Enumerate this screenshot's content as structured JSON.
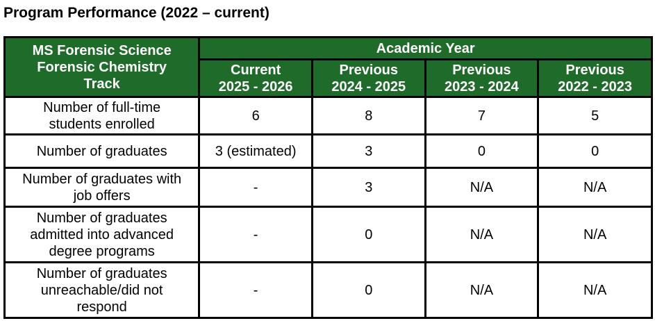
{
  "title": "Program Performance (2022 – current)",
  "colors": {
    "header_bg": "#1e6b2a",
    "header_text": "#ffffff",
    "border": "#000000"
  },
  "table": {
    "corner_lines": [
      "MS Forensic Science",
      "Forensic Chemistry",
      "Track"
    ],
    "group_header": "Academic Year",
    "columns": [
      {
        "line1": "Current",
        "line2": "2025 - 2026"
      },
      {
        "line1": "Previous",
        "line2": "2024 - 2025"
      },
      {
        "line1": "Previous",
        "line2": "2023 - 2024"
      },
      {
        "line1": "Previous",
        "line2": "2022 - 2023"
      }
    ],
    "rows": [
      {
        "label_lines": [
          "Number of full-time",
          "students enrolled"
        ],
        "values": [
          "6",
          "8",
          "7",
          "5"
        ]
      },
      {
        "label_lines": [
          "Number of graduates"
        ],
        "values": [
          "3 (estimated)",
          "3",
          "0",
          "0"
        ]
      },
      {
        "label_lines": [
          "Number of graduates with",
          "job offers"
        ],
        "values": [
          "-",
          "3",
          "N/A",
          "N/A"
        ]
      },
      {
        "label_lines": [
          "Number of graduates",
          "admitted into advanced",
          "degree programs"
        ],
        "values": [
          "-",
          "0",
          "N/A",
          "N/A"
        ]
      },
      {
        "label_lines": [
          "Number of graduates",
          "unreachable/did not",
          "respond"
        ],
        "values": [
          "-",
          "0",
          "N/A",
          "N/A"
        ]
      }
    ]
  }
}
